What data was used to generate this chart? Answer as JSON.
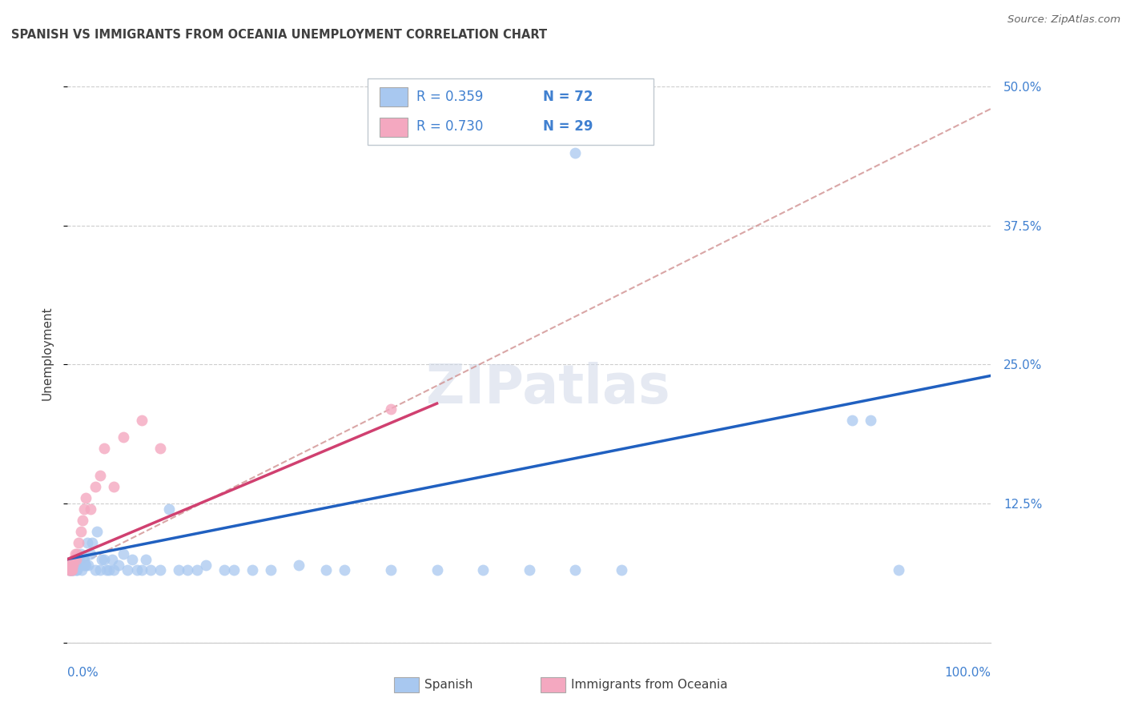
{
  "title": "SPANISH VS IMMIGRANTS FROM OCEANIA UNEMPLOYMENT CORRELATION CHART",
  "source": "Source: ZipAtlas.com",
  "ylabel": "Unemployment",
  "watermark_text": "ZIPatlas",
  "color_spanish": "#A8C8F0",
  "color_oceania": "#F4A8C0",
  "color_line_spanish": "#2060C0",
  "color_line_oceania": "#D04070",
  "color_dashed": "#D09090",
  "color_blue_text": "#4080D0",
  "color_dark_text": "#404040",
  "color_grid": "#C8C8C8",
  "legend_R1": "R = 0.359",
  "legend_N1": "N = 72",
  "legend_R2": "R = 0.730",
  "legend_N2": "N = 29",
  "legend_label1": "Spanish",
  "legend_label2": "Immigrants from Oceania",
  "ytick_values": [
    0.0,
    0.125,
    0.25,
    0.375,
    0.5
  ],
  "ytick_labels": [
    "",
    "12.5%",
    "25.0%",
    "37.5%",
    "50.0%"
  ],
  "ylim": [
    0.0,
    0.52
  ],
  "xlim": [
    0.0,
    1.0
  ],
  "spanish_x": [
    0.001,
    0.001,
    0.002,
    0.002,
    0.003,
    0.003,
    0.004,
    0.004,
    0.005,
    0.005,
    0.006,
    0.006,
    0.007,
    0.007,
    0.008,
    0.009,
    0.01,
    0.01,
    0.011,
    0.012,
    0.013,
    0.014,
    0.015,
    0.016,
    0.017,
    0.018,
    0.019,
    0.02,
    0.021,
    0.022,
    0.025,
    0.027,
    0.03,
    0.032,
    0.035,
    0.037,
    0.04,
    0.042,
    0.045,
    0.048,
    0.05,
    0.055,
    0.06,
    0.065,
    0.07,
    0.075,
    0.08,
    0.085,
    0.09,
    0.1,
    0.11,
    0.12,
    0.13,
    0.14,
    0.15,
    0.17,
    0.18,
    0.2,
    0.22,
    0.25,
    0.28,
    0.3,
    0.35,
    0.4,
    0.45,
    0.5,
    0.55,
    0.6,
    0.85,
    0.87,
    0.9,
    0.55
  ],
  "spanish_y": [
    0.065,
    0.07,
    0.065,
    0.07,
    0.065,
    0.07,
    0.065,
    0.07,
    0.065,
    0.07,
    0.065,
    0.07,
    0.065,
    0.07,
    0.07,
    0.065,
    0.065,
    0.075,
    0.07,
    0.075,
    0.07,
    0.08,
    0.065,
    0.07,
    0.075,
    0.075,
    0.07,
    0.07,
    0.09,
    0.07,
    0.08,
    0.09,
    0.065,
    0.1,
    0.065,
    0.075,
    0.075,
    0.065,
    0.065,
    0.075,
    0.065,
    0.07,
    0.08,
    0.065,
    0.075,
    0.065,
    0.065,
    0.075,
    0.065,
    0.065,
    0.12,
    0.065,
    0.065,
    0.065,
    0.07,
    0.065,
    0.065,
    0.065,
    0.065,
    0.07,
    0.065,
    0.065,
    0.065,
    0.065,
    0.065,
    0.065,
    0.065,
    0.065,
    0.2,
    0.2,
    0.065,
    0.44
  ],
  "oceania_x": [
    0.001,
    0.001,
    0.002,
    0.002,
    0.003,
    0.003,
    0.004,
    0.004,
    0.005,
    0.005,
    0.006,
    0.007,
    0.008,
    0.009,
    0.01,
    0.012,
    0.014,
    0.016,
    0.018,
    0.02,
    0.025,
    0.03,
    0.035,
    0.04,
    0.05,
    0.06,
    0.08,
    0.1,
    0.35
  ],
  "oceania_y": [
    0.065,
    0.07,
    0.065,
    0.07,
    0.065,
    0.07,
    0.065,
    0.07,
    0.065,
    0.07,
    0.07,
    0.075,
    0.08,
    0.075,
    0.08,
    0.09,
    0.1,
    0.11,
    0.12,
    0.13,
    0.12,
    0.14,
    0.15,
    0.175,
    0.14,
    0.185,
    0.2,
    0.175,
    0.21
  ],
  "sp_line_x": [
    0.0,
    1.0
  ],
  "sp_line_y": [
    0.075,
    0.24
  ],
  "oc_line_x": [
    0.0,
    0.4
  ],
  "oc_line_y": [
    0.075,
    0.215
  ],
  "dash_line_x": [
    0.0,
    1.0
  ],
  "dash_line_y": [
    0.065,
    0.48
  ],
  "title_fontsize": 10.5,
  "tick_fontsize": 11,
  "legend_fontsize": 12,
  "source_fontsize": 9.5
}
